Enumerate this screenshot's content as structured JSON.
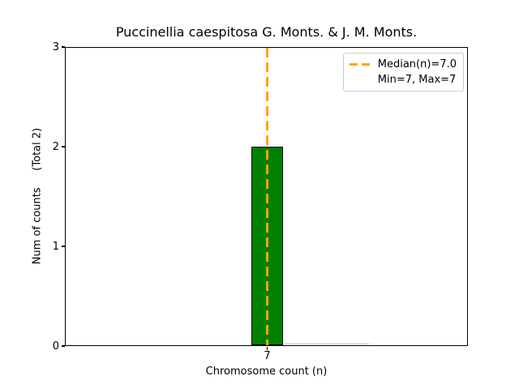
{
  "chart_data": {
    "type": "bar",
    "title": "Puccinellia caespitosa G. Monts. & J. M. Monts.",
    "xlabel": "Chromosome count (n)",
    "ylabel": "Num of counts     (Total 2)",
    "total_counts": 2,
    "categories": [
      "7"
    ],
    "values": [
      2
    ],
    "ylim": [
      0,
      3
    ],
    "yticks": [
      "0",
      "1",
      "2",
      "3"
    ],
    "xticks": [
      "7"
    ],
    "grid": false,
    "bar_color": "#008000",
    "bar_edge_color": "#000000",
    "median_line": {
      "value": 7.0,
      "color": "#FFA500",
      "style": "dashed"
    },
    "legend": {
      "position": "upper right",
      "entries": [
        {
          "label": "Median(n)=7.0",
          "swatch": "orange-dashed-line"
        },
        {
          "label": "Min=7, Max=7",
          "swatch": "none"
        }
      ]
    }
  }
}
